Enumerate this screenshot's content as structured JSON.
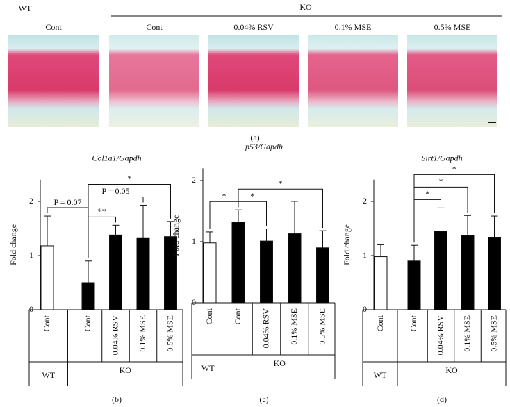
{
  "figure_a": {
    "groups": [
      "WT",
      "KO"
    ],
    "labels": [
      "Cont",
      "Cont",
      "0.04% RSV",
      "0.1% MSE",
      "0.5% MSE"
    ],
    "panel": "(a)"
  },
  "chart_data": [
    {
      "type": "bar",
      "title": "Col1a1/Gapdh",
      "y_label": "Fold change",
      "panel": "(b)",
      "categories": [
        "Cont",
        "Cont",
        "0.04% RSV",
        "0.1% MSE",
        "0.5% MSE"
      ],
      "groups": [
        "WT",
        "KO"
      ],
      "values": [
        1.18,
        0.5,
        1.38,
        1.33,
        1.35
      ],
      "errors": [
        0.55,
        0.4,
        0.18,
        0.6,
        0.28
      ],
      "colors": [
        "#ffffff",
        "#000000",
        "#000000",
        "#000000",
        "#000000"
      ],
      "ylim": [
        0,
        2.4
      ],
      "yticks": [
        0,
        1,
        2
      ],
      "annotations": [
        {
          "pair": [
            0,
            1
          ],
          "label": "P = 0.07"
        },
        {
          "pair": [
            1,
            2
          ],
          "label": "**"
        },
        {
          "pair": [
            1,
            3
          ],
          "label": "P = 0.05"
        },
        {
          "pair": [
            1,
            4
          ],
          "label": "*"
        }
      ]
    },
    {
      "type": "bar",
      "title": "p53/Gapdh",
      "y_label": "Fold change",
      "panel": "(c)",
      "categories": [
        "Cont",
        "Cont",
        "0.04% RSV",
        "0.1% MSE",
        "0.5% MSE"
      ],
      "groups": [
        "WT",
        "KO"
      ],
      "values": [
        0.98,
        1.32,
        1.01,
        1.13,
        0.9
      ],
      "errors": [
        0.18,
        0.2,
        0.2,
        0.53,
        0.28
      ],
      "colors": [
        "#ffffff",
        "#000000",
        "#000000",
        "#000000",
        "#000000"
      ],
      "ylim": [
        0,
        2.2
      ],
      "yticks": [
        0,
        1,
        2
      ],
      "annotations": [
        {
          "pair": [
            0,
            1
          ],
          "label": "*"
        },
        {
          "pair": [
            1,
            2
          ],
          "label": "*"
        },
        {
          "pair": [
            1,
            4
          ],
          "label": "*"
        }
      ]
    },
    {
      "type": "bar",
      "title": "Sirt1/Gapdh",
      "y_label": "Fold change",
      "panel": "(d)",
      "categories": [
        "Cont",
        "Cont",
        "0.04% RSV",
        "0.1% MSE",
        "0.5% MSE"
      ],
      "groups": [
        "WT",
        "KO"
      ],
      "values": [
        0.98,
        0.9,
        1.45,
        1.37,
        1.34
      ],
      "errors": [
        0.22,
        0.29,
        0.43,
        0.37,
        0.39
      ],
      "colors": [
        "#ffffff",
        "#000000",
        "#000000",
        "#000000",
        "#000000"
      ],
      "ylim": [
        0,
        2.4
      ],
      "yticks": [
        0,
        1,
        2
      ],
      "annotations": [
        {
          "pair": [
            1,
            2
          ],
          "label": "*"
        },
        {
          "pair": [
            1,
            3
          ],
          "label": "*"
        },
        {
          "pair": [
            1,
            4
          ],
          "label": "*"
        }
      ]
    }
  ]
}
